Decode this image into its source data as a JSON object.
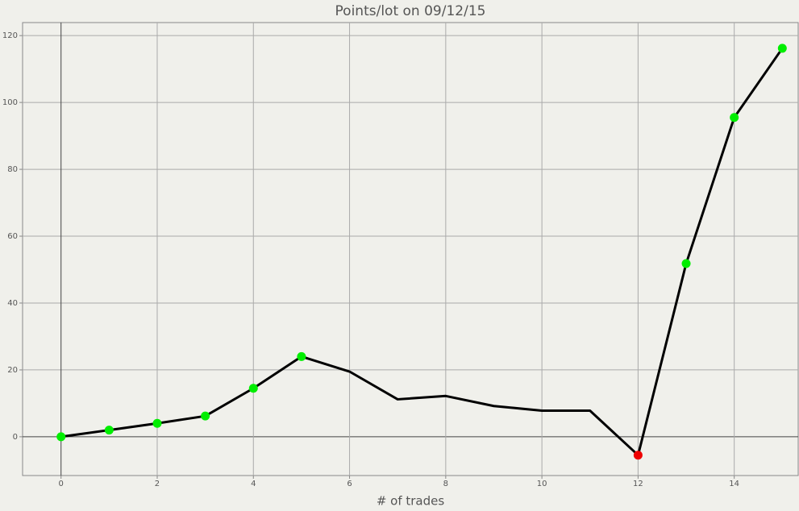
{
  "chart_data": {
    "type": "line",
    "title": "Points/lot on 09/12/15",
    "x_label": "# of trades",
    "x": [
      0,
      1,
      2,
      3,
      4,
      5,
      6,
      7,
      8,
      9,
      10,
      11,
      12,
      13,
      14,
      15
    ],
    "series": [
      {
        "color": "#000000",
        "values": [
          0,
          2,
          4,
          6.2,
          14.5,
          24,
          19.5,
          11.2,
          12.2,
          9.2,
          7.8,
          7.8,
          -5.5,
          51.8,
          95.5,
          116.2
        ],
        "marker_colors": [
          "#00ee00",
          "#00ee00",
          "#00ee00",
          "#00ee00",
          "#00ee00",
          "#00ee00",
          null,
          null,
          null,
          null,
          null,
          null,
          "#ee0000",
          "#00ee00",
          "#00ee00",
          "#00ee00"
        ]
      }
    ],
    "xlim": [
      -0.8,
      15.33
    ],
    "xticks": [
      0,
      2,
      4,
      6,
      8,
      10,
      12,
      14
    ],
    "ylim": [
      -11.6,
      123.9
    ],
    "yticks": [
      0,
      20,
      40,
      60,
      80,
      100,
      120
    ],
    "grid": true
  }
}
